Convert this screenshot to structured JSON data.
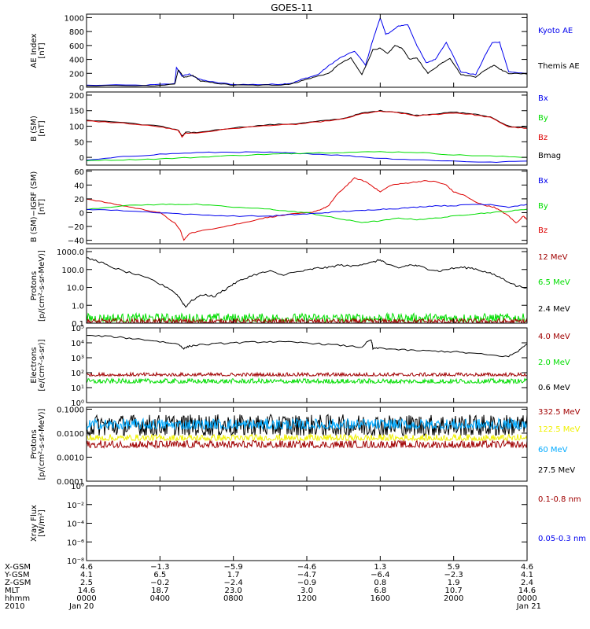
{
  "title": "GOES-11",
  "colors": {
    "black": "#000000",
    "blue": "#0000ee",
    "red": "#dd0000",
    "green": "#00dd00",
    "darkred": "#a00000",
    "yellow": "#f0f000",
    "cyan": "#00aaff"
  },
  "chart_data": [
    {
      "id": "ae",
      "type": "line",
      "ylabel": [
        "AE Index",
        "[nT]"
      ],
      "ylim": [
        0,
        1050
      ],
      "yticks": [
        {
          "v": 0,
          "label": "0"
        },
        {
          "v": 200,
          "label": "200"
        },
        {
          "v": 400,
          "label": "400"
        },
        {
          "v": 600,
          "label": "600"
        },
        {
          "v": 800,
          "label": "800"
        },
        {
          "v": 1000,
          "label": "1000"
        }
      ],
      "series": [
        {
          "name": "Kyoto AE",
          "color": "blue",
          "x": [
            0,
            3.2,
            4.8,
            4.9,
            5.2,
            5.6,
            6.2,
            7.0,
            8.0,
            9.6,
            10.6,
            11.2,
            11.8,
            12.6,
            13.2,
            13.8,
            14.6,
            15.2,
            15.6,
            16.0,
            16.3,
            16.6,
            17.0,
            17.5,
            18.0,
            18.5,
            19.0,
            19.6,
            20.4,
            21.2,
            21.8,
            22.1,
            22.5,
            23.0,
            24
          ],
          "y": [
            30,
            30,
            50,
            280,
            160,
            190,
            110,
            70,
            40,
            40,
            45,
            60,
            120,
            180,
            310,
            420,
            520,
            320,
            680,
            1000,
            760,
            800,
            880,
            900,
            600,
            350,
            400,
            650,
            220,
            180,
            500,
            640,
            650,
            220,
            200
          ]
        },
        {
          "name": "Themis AE",
          "color": "black",
          "x": [
            0,
            3.2,
            4.8,
            5.0,
            5.3,
            5.8,
            6.2,
            7.0,
            8.0,
            9.6,
            10.6,
            11.2,
            11.8,
            12.6,
            13.2,
            13.8,
            14.4,
            15.0,
            15.6,
            16.0,
            16.4,
            16.8,
            17.2,
            17.6,
            18.0,
            18.6,
            19.2,
            19.8,
            20.4,
            21.2,
            21.8,
            22.2,
            22.6,
            23.0,
            24
          ],
          "y": [
            20,
            20,
            40,
            250,
            140,
            170,
            90,
            60,
            30,
            30,
            35,
            50,
            100,
            160,
            200,
            340,
            420,
            180,
            540,
            560,
            480,
            600,
            560,
            400,
            420,
            200,
            320,
            420,
            180,
            150,
            260,
            320,
            250,
            200,
            190
          ]
        }
      ]
    },
    {
      "id": "bsm",
      "type": "line",
      "ylabel": [
        "B (SM)",
        "[nT]"
      ],
      "ylim": [
        -25,
        210
      ],
      "yticks": [
        {
          "v": 0,
          "label": "0"
        },
        {
          "v": 50,
          "label": "50"
        },
        {
          "v": 100,
          "label": "100"
        },
        {
          "v": 150,
          "label": "150"
        },
        {
          "v": 200,
          "label": "200"
        }
      ],
      "series": [
        {
          "name": "Bmag",
          "color": "black",
          "x": [
            0,
            2,
            4,
            5,
            5.2,
            5.4,
            6,
            8,
            10,
            11.4,
            12.5,
            14,
            15,
            16,
            17,
            18,
            19,
            20,
            21,
            22,
            23,
            24
          ],
          "y": [
            120,
            112,
            100,
            88,
            68,
            80,
            80,
            95,
            105,
            108,
            115,
            125,
            142,
            150,
            145,
            135,
            140,
            145,
            140,
            130,
            100,
            95
          ]
        },
        {
          "name": "Bz",
          "color": "red",
          "x": [
            0,
            2,
            4,
            5,
            5.2,
            5.4,
            6,
            8,
            10,
            11.4,
            12.5,
            14,
            15,
            16,
            17,
            18,
            19,
            20,
            21,
            22,
            23,
            24
          ],
          "y": [
            117,
            110,
            98,
            86,
            66,
            78,
            78,
            93,
            103,
            106,
            113,
            123,
            140,
            148,
            143,
            133,
            138,
            143,
            138,
            128,
            98,
            93
          ]
        },
        {
          "name": "Bx",
          "color": "blue",
          "x": [
            0,
            2,
            4,
            6,
            8,
            10,
            11,
            12,
            14,
            16,
            18,
            20,
            22,
            24
          ],
          "y": [
            -10,
            2,
            10,
            15,
            17,
            16,
            14,
            12,
            6,
            -3,
            -8,
            -12,
            -16,
            -12
          ]
        },
        {
          "name": "By",
          "color": "green",
          "x": [
            0,
            2,
            4,
            6,
            8,
            10,
            11,
            12,
            14,
            16,
            18,
            20,
            22,
            24
          ],
          "y": [
            -10,
            -8,
            -5,
            0,
            6,
            10,
            12,
            14,
            16,
            18,
            16,
            8,
            4,
            0
          ]
        }
      ]
    },
    {
      "id": "bdiff",
      "type": "line",
      "ylabel": [
        "B (SM)−IGRF (SM)",
        "[nT]"
      ],
      "ylim": [
        -45,
        62
      ],
      "yticks": [
        {
          "v": -40,
          "label": "−40"
        },
        {
          "v": -20,
          "label": "−20"
        },
        {
          "v": 0,
          "label": "0"
        },
        {
          "v": 20,
          "label": "20"
        },
        {
          "v": 40,
          "label": "40"
        },
        {
          "v": 60,
          "label": "60"
        }
      ],
      "series": [
        {
          "name": "Bz",
          "color": "red",
          "x": [
            0,
            1,
            2,
            3,
            4,
            4.8,
            5.1,
            5.3,
            5.6,
            6.5,
            7.5,
            8.5,
            9.6,
            10.4,
            11.2,
            12.2,
            12.8,
            13.2,
            13.6,
            14.0,
            14.6,
            15.2,
            15.6,
            16.0,
            16.6,
            17.2,
            17.8,
            18.4,
            19.0,
            19.6,
            20.0,
            20.6,
            21.2,
            21.8,
            22.2,
            22.6,
            23.0,
            23.4,
            23.8,
            24
          ],
          "y": [
            20,
            15,
            10,
            5,
            0,
            -15,
            -25,
            -40,
            -30,
            -25,
            -20,
            -15,
            -8,
            -5,
            -2,
            0,
            5,
            10,
            25,
            35,
            50,
            45,
            38,
            30,
            40,
            42,
            44,
            46,
            45,
            40,
            30,
            25,
            15,
            10,
            8,
            2,
            -5,
            -15,
            -5,
            -10
          ]
        },
        {
          "name": "By",
          "color": "green",
          "x": [
            0,
            2,
            4,
            5,
            6,
            8,
            10,
            11,
            12,
            13,
            14,
            15,
            16,
            17,
            18,
            19,
            20,
            21,
            22,
            23,
            24
          ],
          "y": [
            5,
            10,
            12,
            12,
            12,
            8,
            5,
            2,
            0,
            -5,
            -10,
            -14,
            -12,
            -8,
            -10,
            -8,
            -5,
            -2,
            0,
            2,
            5
          ]
        },
        {
          "name": "Bx",
          "color": "blue",
          "x": [
            0,
            2,
            4,
            6,
            8,
            10,
            11,
            12,
            13,
            14,
            15,
            16,
            17,
            18,
            19,
            20,
            21,
            22,
            23,
            24
          ],
          "y": [
            5,
            3,
            0,
            -3,
            -5,
            -5,
            -3,
            -2,
            0,
            2,
            3,
            5,
            6,
            8,
            10,
            10,
            12,
            12,
            8,
            12
          ]
        }
      ]
    },
    {
      "id": "protons",
      "type": "line",
      "log": true,
      "ylabel": [
        "Protons",
        "[p/(cm²-s-sr-MeV)]"
      ],
      "ylim": [
        0.1,
        1500
      ],
      "yticks": [
        {
          "v": 0.1,
          "label": "0.1"
        },
        {
          "v": 1,
          "label": "1.0"
        },
        {
          "v": 10,
          "label": "10.0"
        },
        {
          "v": 100,
          "label": "100.0"
        },
        {
          "v": 1000,
          "label": "1000.0"
        }
      ],
      "series": [
        {
          "name": "2.4 MeV",
          "color": "black",
          "x": [
            0,
            0.6,
            1.2,
            2,
            3,
            4,
            4.8,
            5.2,
            5.4,
            5.8,
            6.4,
            7,
            7.6,
            8,
            8.6,
            9.4,
            10,
            10.6,
            11.4,
            12,
            12.6,
            13.2,
            13.8,
            14.4,
            15,
            15.6,
            16,
            16.4,
            17,
            17.6,
            18,
            18.6,
            19.2,
            19.8,
            20.4,
            21,
            21.6,
            22.2,
            22.8,
            23.4,
            24
          ],
          "y": [
            420,
            300,
            150,
            80,
            40,
            15,
            5,
            1.5,
            0.8,
            2,
            4,
            3,
            8,
            15,
            30,
            60,
            80,
            50,
            70,
            90,
            120,
            130,
            180,
            150,
            200,
            250,
            350,
            180,
            120,
            180,
            160,
            110,
            80,
            110,
            130,
            120,
            80,
            50,
            25,
            12,
            10
          ]
        },
        {
          "name": "6.5 MeV",
          "color": "green",
          "noise": true,
          "base": 0.12,
          "peak": 0.35
        },
        {
          "name": "12 MeV",
          "color": "darkred",
          "noise": true,
          "base": 0.1,
          "peak": 0.18
        }
      ]
    },
    {
      "id": "electrons",
      "type": "line",
      "log": true,
      "ylabel": [
        "Electrons",
        "[e/(cm²-s-sr)]"
      ],
      "ylim": [
        1,
        100000
      ],
      "yticks": [
        {
          "v": 1,
          "label": "10⁰"
        },
        {
          "v": 10,
          "label": "10¹"
        },
        {
          "v": 100,
          "label": "10²"
        },
        {
          "v": 1000,
          "label": "10³"
        },
        {
          "v": 10000,
          "label": "10⁴"
        },
        {
          "v": 100000,
          "label": "10⁵"
        }
      ],
      "series": [
        {
          "name": "0.6 MeV",
          "color": "black",
          "x": [
            0,
            1,
            2,
            3,
            4,
            5,
            5.3,
            5.6,
            6,
            7,
            8,
            9,
            10,
            11,
            12,
            13,
            14,
            15,
            15.5,
            15.6,
            16,
            17,
            18,
            19,
            20,
            21,
            22,
            23,
            23.5,
            24
          ],
          "y": [
            30000,
            28000,
            22000,
            17000,
            12000,
            8000,
            4000,
            6000,
            7000,
            8500,
            10000,
            11000,
            12000,
            11000,
            10000,
            8000,
            6500,
            5000,
            15000,
            4000,
            4500,
            3500,
            3000,
            2800,
            2500,
            2000,
            1500,
            1200,
            2500,
            8000
          ]
        },
        {
          "name": "4.0 MeV",
          "color": "darkred",
          "noise": true,
          "base": 60,
          "peak": 100
        },
        {
          "name": "2.0 MeV",
          "color": "green",
          "noise": true,
          "base": 20,
          "peak": 40
        }
      ]
    },
    {
      "id": "hiprotons",
      "type": "line",
      "log": true,
      "ylabel": [
        "Protons",
        "[p/(cm²-s-sr-MeV)]"
      ],
      "ylim": [
        0.0001,
        0.12
      ],
      "yticks": [
        {
          "v": 0.0001,
          "label": "0.0001"
        },
        {
          "v": 0.001,
          "label": "0.0010"
        },
        {
          "v": 0.01,
          "label": "0.0100"
        },
        {
          "v": 0.1,
          "label": "0.1000"
        }
      ],
      "series": [
        {
          "name": "27.5 MeV",
          "color": "black",
          "noise": true,
          "base": 0.008,
          "peak": 0.06
        },
        {
          "name": "60 MeV",
          "color": "cyan",
          "noise": true,
          "base": 0.015,
          "peak": 0.04
        },
        {
          "name": "122.5 MeV",
          "color": "yellow",
          "noise": true,
          "base": 0.005,
          "peak": 0.009
        },
        {
          "name": "332.5 MeV",
          "color": "darkred",
          "noise": true,
          "base": 0.0025,
          "peak": 0.005
        }
      ]
    },
    {
      "id": "xray",
      "type": "line",
      "log": true,
      "ylabel": [
        "Xray Flux",
        "[W/m²]"
      ],
      "ylim": [
        1e-08,
        1
      ],
      "yticks": [
        {
          "v": 1e-08,
          "label": "10⁻⁸"
        },
        {
          "v": 1e-06,
          "label": "10⁻⁶"
        },
        {
          "v": 0.0001,
          "label": "10⁻⁴"
        },
        {
          "v": 0.01,
          "label": "10⁻²"
        },
        {
          "v": 1,
          "label": "10⁰"
        }
      ],
      "series": []
    }
  ],
  "legends": [
    [
      {
        "text": "Kyoto AE",
        "color": "blue"
      },
      {
        "text": "Themis AE",
        "color": "black"
      }
    ],
    [
      {
        "text": "Bx",
        "color": "blue"
      },
      {
        "text": "By",
        "color": "green"
      },
      {
        "text": "Bz",
        "color": "red"
      },
      {
        "text": "Bmag",
        "color": "black"
      }
    ],
    [
      {
        "text": "Bx",
        "color": "blue"
      },
      {
        "text": "By",
        "color": "green"
      },
      {
        "text": "Bz",
        "color": "red"
      }
    ],
    [
      {
        "text": "12 MeV",
        "color": "darkred"
      },
      {
        "text": "6.5 MeV",
        "color": "green"
      },
      {
        "text": "2.4 MeV",
        "color": "black"
      }
    ],
    [
      {
        "text": "4.0 MeV",
        "color": "darkred"
      },
      {
        "text": "2.0 MeV",
        "color": "green"
      },
      {
        "text": "0.6 MeV",
        "color": "black"
      }
    ],
    [
      {
        "text": "332.5 MeV",
        "color": "darkred"
      },
      {
        "text": "122.5 MeV",
        "color": "yellow"
      },
      {
        "text": "60 MeV",
        "color": "cyan"
      },
      {
        "text": "27.5 MeV",
        "color": "black"
      }
    ],
    [
      {
        "text": "0.1-0.8 nm",
        "color": "darkred"
      },
      {
        "text": "0.05-0.3 nm",
        "color": "blue"
      }
    ]
  ],
  "xaxis": {
    "hours": [
      0,
      4,
      8,
      12,
      16,
      20,
      24
    ],
    "row_labels": [
      "X-GSM",
      "Y-GSM",
      "Z-GSM",
      "MLT",
      "hhmm",
      "2010"
    ],
    "columns": [
      [
        "4.6",
        "4.1",
        "2.5",
        "14.6",
        "0000",
        "Jan 20"
      ],
      [
        "−1.3",
        "6.5",
        "−0.2",
        "18.7",
        "0400",
        ""
      ],
      [
        "−5.9",
        "1.7",
        "−2.4",
        "23.0",
        "0800",
        ""
      ],
      [
        "−4.6",
        "−4.7",
        "−0.9",
        "3.0",
        "1200",
        ""
      ],
      [
        "1.3",
        "−6.4",
        "0.8",
        "6.8",
        "1600",
        ""
      ],
      [
        "5.9",
        "−2.3",
        "1.9",
        "10.7",
        "2000",
        ""
      ],
      [
        "4.6",
        "4.1",
        "2.4",
        "14.6",
        "0000",
        "Jan 21"
      ]
    ]
  }
}
